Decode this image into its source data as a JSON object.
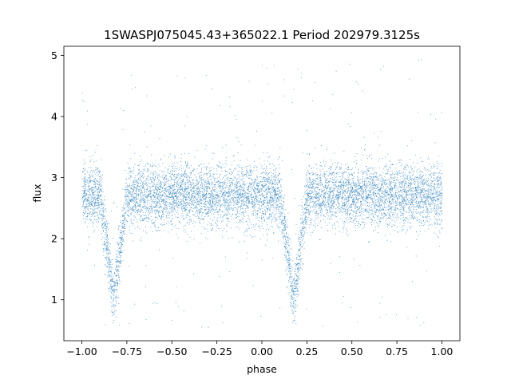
{
  "chart_data": {
    "type": "scatter",
    "title": "1SWASPJ075045.43+365022.1 Period 202979.3125s",
    "xlabel": "phase",
    "ylabel": "flux",
    "xlim": [
      -1.1,
      1.1
    ],
    "ylim": [
      0.33,
      5.15
    ],
    "xticks": [
      -1.0,
      -0.75,
      -0.5,
      -0.25,
      0.0,
      0.25,
      0.5,
      0.75,
      1.0
    ],
    "xtick_labels": [
      "−1.00",
      "−0.75",
      "−0.50",
      "−0.25",
      "0.00",
      "0.25",
      "0.50",
      "0.75",
      "1.00"
    ],
    "yticks": [
      1,
      2,
      3,
      4,
      5
    ],
    "ytick_labels": [
      "1",
      "2",
      "3",
      "4",
      "5"
    ],
    "grid": false,
    "legend": "none",
    "marker_color": "#1f77b4",
    "baseline_flux": 2.72,
    "scatter_sigma": 0.25,
    "eclipses": [
      {
        "phase": -0.825,
        "min_flux": 1.02,
        "half_width": 0.075
      },
      {
        "phase": 0.175,
        "min_flux": 1.02,
        "half_width": 0.075
      }
    ],
    "flux_range": [
      0.55,
      4.98
    ]
  }
}
